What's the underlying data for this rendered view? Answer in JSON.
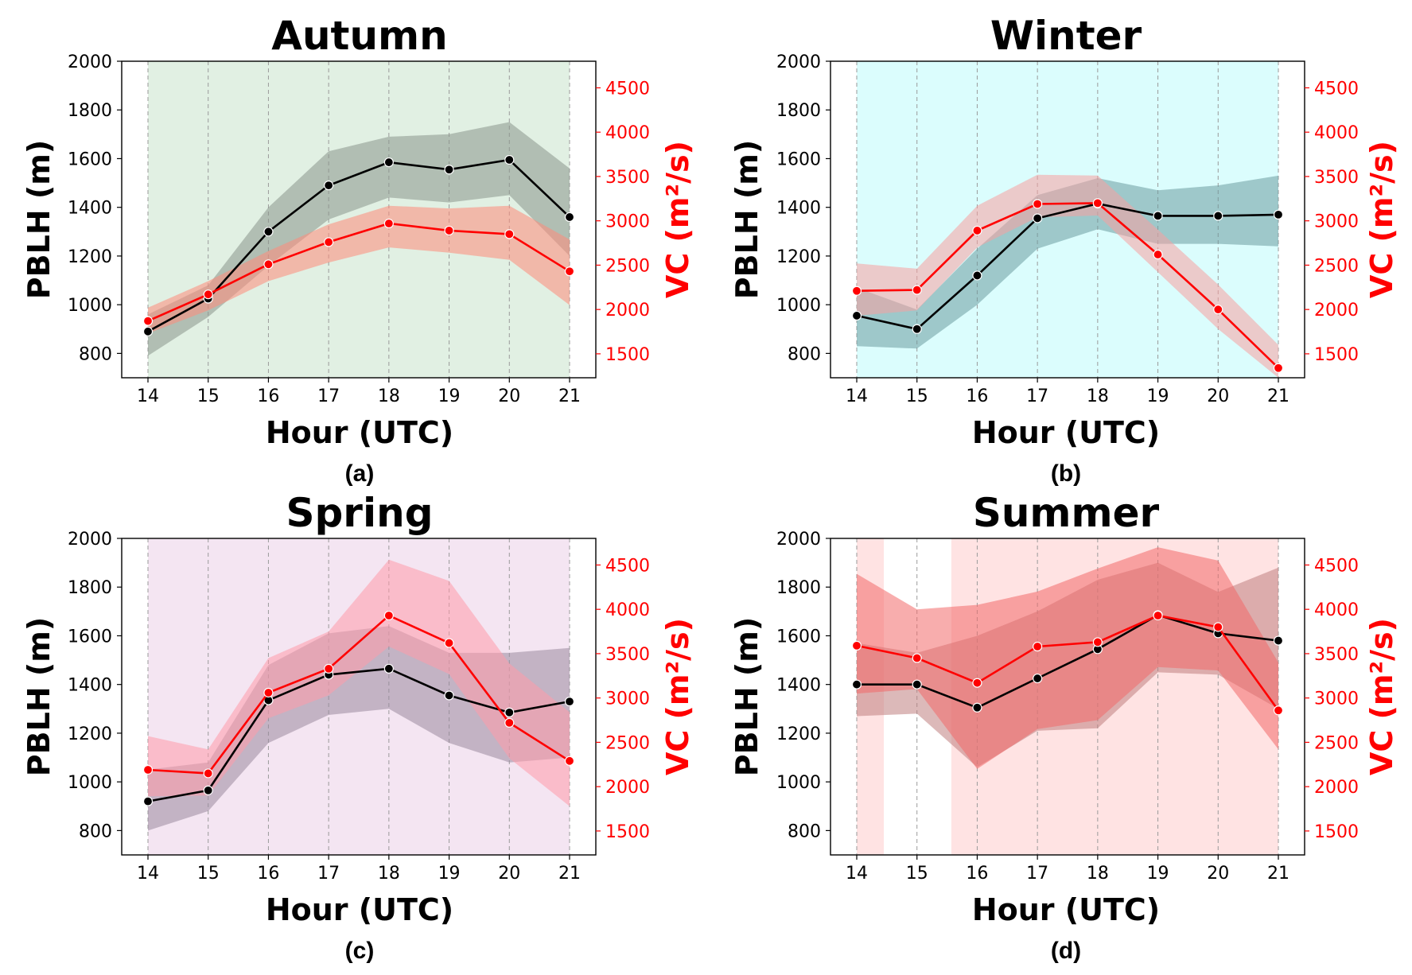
{
  "chart_data": [
    {
      "type": "line",
      "panel_label": "(a)",
      "title": "Autumn",
      "xlabel": "Hour (UTC)",
      "ylabel": "PBLH (m)",
      "y2label": "VC (m²/s)",
      "categories": [
        "14",
        "15",
        "16",
        "17",
        "18",
        "19",
        "20",
        "21"
      ],
      "ylim": [
        700,
        2000
      ],
      "y2lim": [
        1230,
        4800
      ],
      "yticks": [
        "800",
        "1000",
        "1200",
        "1400",
        "1600",
        "1800",
        "2000"
      ],
      "y2ticks": [
        "1500",
        "2000",
        "2500",
        "3000",
        "3500",
        "4000",
        "4500"
      ],
      "background_color": "#e1f0e3",
      "background_gap": null,
      "series": [
        {
          "name": "PBLH",
          "axis": "left",
          "color": "#000000",
          "band_color": "#8a958d",
          "values": [
            890,
            1025,
            1300,
            1490,
            1585,
            1555,
            1595,
            1360
          ],
          "lower": [
            790,
            950,
            1160,
            1350,
            1440,
            1420,
            1450,
            1200
          ],
          "upper": [
            960,
            1080,
            1400,
            1630,
            1690,
            1700,
            1750,
            1560
          ]
        },
        {
          "name": "VC",
          "axis": "right",
          "color": "#ff0000",
          "band_color": "#ff8a7a",
          "values": [
            1870,
            2170,
            2510,
            2760,
            2970,
            2890,
            2850,
            2430
          ],
          "lower": [
            1730,
            1990,
            2320,
            2530,
            2700,
            2640,
            2560,
            2050
          ],
          "upper": [
            2020,
            2320,
            2660,
            2960,
            3170,
            3140,
            3170,
            2790
          ]
        }
      ]
    },
    {
      "type": "line",
      "panel_label": "(b)",
      "title": "Winter",
      "xlabel": "Hour (UTC)",
      "ylabel": "PBLH (m)",
      "y2label": "VC (m²/s)",
      "categories": [
        "14",
        "15",
        "16",
        "17",
        "18",
        "19",
        "20",
        "21"
      ],
      "ylim": [
        700,
        2000
      ],
      "y2lim": [
        1230,
        4800
      ],
      "yticks": [
        "800",
        "1000",
        "1200",
        "1400",
        "1600",
        "1800",
        "2000"
      ],
      "y2ticks": [
        "1500",
        "2000",
        "2500",
        "3000",
        "3500",
        "4000",
        "4500"
      ],
      "background_color": "#dbfdfd",
      "background_gap": null,
      "series": [
        {
          "name": "PBLH",
          "axis": "left",
          "color": "#000000",
          "band_color": "#6c9ca0",
          "values": [
            955,
            900,
            1120,
            1355,
            1415,
            1365,
            1365,
            1370
          ],
          "lower": [
            830,
            820,
            1000,
            1230,
            1310,
            1250,
            1250,
            1240
          ],
          "upper": [
            1070,
            980,
            1230,
            1450,
            1520,
            1470,
            1490,
            1530
          ]
        },
        {
          "name": "VC",
          "axis": "right",
          "color": "#ff0000",
          "band_color": "#f7a0a0",
          "values": [
            2210,
            2220,
            2890,
            3190,
            3200,
            2620,
            2000,
            1340
          ],
          "lower": [
            1930,
            1990,
            2700,
            3040,
            3060,
            2420,
            1780,
            1230
          ],
          "upper": [
            2520,
            2460,
            3170,
            3520,
            3510,
            2900,
            2280,
            1600
          ]
        }
      ]
    },
    {
      "type": "line",
      "panel_label": "(c)",
      "title": "Spring",
      "xlabel": "Hour (UTC)",
      "ylabel": "PBLH (m)",
      "y2label": "VC (m²/s)",
      "categories": [
        "14",
        "15",
        "16",
        "17",
        "18",
        "19",
        "20",
        "21"
      ],
      "ylim": [
        700,
        2000
      ],
      "y2lim": [
        1230,
        4800
      ],
      "yticks": [
        "800",
        "1000",
        "1200",
        "1400",
        "1600",
        "1800",
        "2000"
      ],
      "y2ticks": [
        "1500",
        "2000",
        "2500",
        "3000",
        "3500",
        "4000",
        "4500"
      ],
      "background_color": "#f4e5f2",
      "background_gap": null,
      "series": [
        {
          "name": "PBLH",
          "axis": "left",
          "color": "#000000",
          "band_color": "#9a8a9e",
          "values": [
            920,
            965,
            1335,
            1440,
            1465,
            1355,
            1285,
            1330
          ],
          "lower": [
            800,
            880,
            1160,
            1275,
            1300,
            1160,
            1080,
            1100
          ],
          "upper": [
            1050,
            1080,
            1480,
            1610,
            1640,
            1530,
            1530,
            1550
          ]
        },
        {
          "name": "VC",
          "axis": "right",
          "color": "#ff0000",
          "band_color": "#ff9aaa",
          "values": [
            2190,
            2150,
            3060,
            3330,
            3930,
            3620,
            2720,
            2290
          ],
          "lower": [
            1890,
            1900,
            2770,
            3030,
            3580,
            3270,
            2320,
            1780
          ],
          "upper": [
            2570,
            2420,
            3450,
            3750,
            4560,
            4320,
            3390,
            2840
          ]
        }
      ]
    },
    {
      "type": "line",
      "panel_label": "(d)",
      "title": "Summer",
      "xlabel": "Hour (UTC)",
      "ylabel": "PBLH (m)",
      "y2label": "VC (m²/s)",
      "categories": [
        "14",
        "15",
        "16",
        "17",
        "18",
        "19",
        "20",
        "21"
      ],
      "ylim": [
        700,
        2000
      ],
      "y2lim": [
        1230,
        4800
      ],
      "yticks": [
        "800",
        "1000",
        "1200",
        "1400",
        "1600",
        "1800",
        "2000"
      ],
      "y2ticks": [
        "1500",
        "2000",
        "2500",
        "3000",
        "3500",
        "4000",
        "4500"
      ],
      "background_color": "#ffe3e3",
      "background_gap": [
        14.45,
        15.57
      ],
      "series": [
        {
          "name": "PBLH",
          "axis": "left",
          "color": "#000000",
          "band_color": "#c08080",
          "values": [
            1400,
            1400,
            1305,
            1425,
            1545,
            1685,
            1610,
            1580
          ],
          "lower": [
            1270,
            1280,
            1060,
            1210,
            1220,
            1450,
            1440,
            1300
          ],
          "upper": [
            1570,
            1530,
            1600,
            1700,
            1830,
            1900,
            1780,
            1880
          ]
        },
        {
          "name": "VC",
          "axis": "right",
          "color": "#ff0000",
          "band_color": "#f26a6a",
          "values": [
            3590,
            3450,
            3170,
            3580,
            3630,
            3930,
            3800,
            2860
          ],
          "lower": [
            3050,
            3100,
            2200,
            2650,
            2750,
            3350,
            3310,
            2420
          ],
          "upper": [
            4400,
            4000,
            4050,
            4200,
            4460,
            4700,
            4550,
            3400
          ]
        }
      ]
    }
  ]
}
